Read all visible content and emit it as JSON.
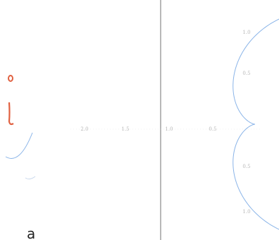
{
  "axis_labels": {
    "x": [
      "2.0",
      "1.5",
      "1.0",
      "0.5"
    ],
    "y": [
      "1.0",
      "0.5",
      "0.5",
      "1.0"
    ]
  },
  "caption": "a"
}
